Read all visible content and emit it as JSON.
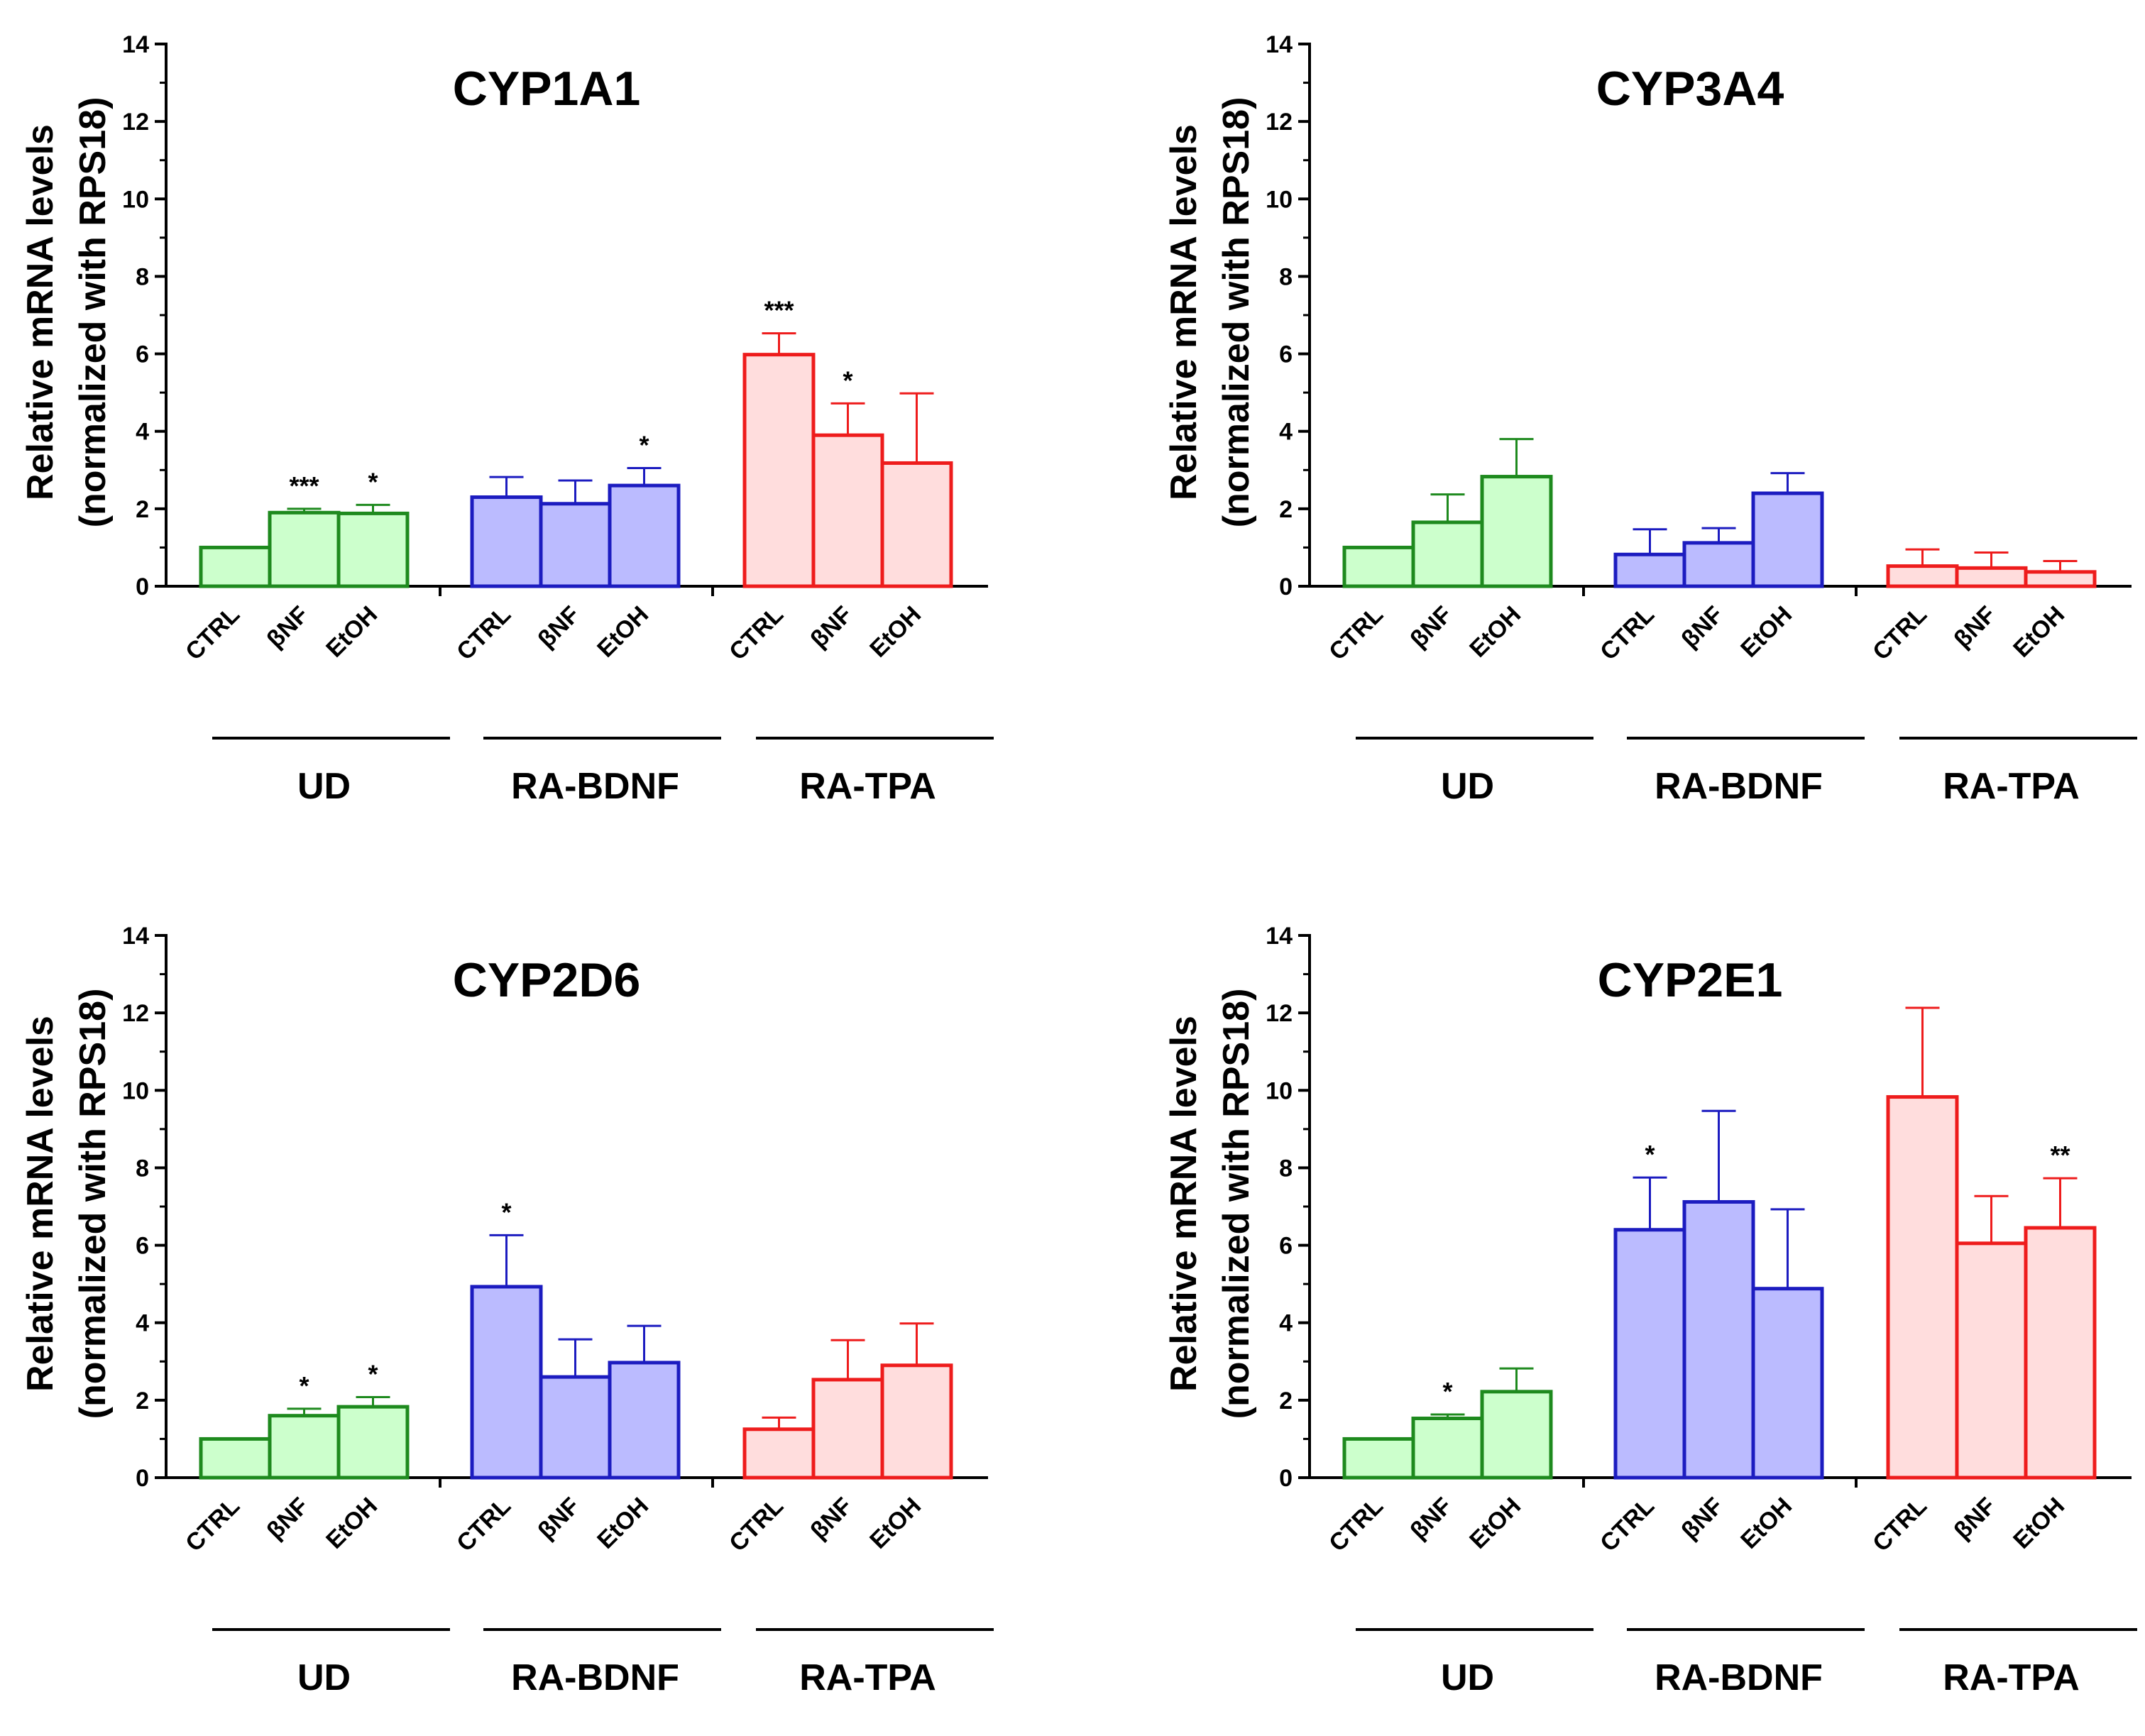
{
  "figure": {
    "ylabel_line1": "Relative mRNA levels",
    "ylabel_line2": "(normalized with RPS18)",
    "yticks": [
      0,
      2,
      4,
      6,
      8,
      10,
      12,
      14
    ],
    "ylim": [
      0,
      14
    ],
    "colors": {
      "UD": "#1e8a1e",
      "RA-BDNF": "#1c1cc0",
      "RA-TPA": "#ee1c1c"
    },
    "fills": {
      "UD": "#ccffcc",
      "RA-BDNF": "#bbbbff",
      "RA-TPA": "#ffdddd"
    }
  },
  "chart_data": [
    {
      "type": "bar",
      "title": "CYP1A1",
      "xlabel": "",
      "ylabel": "Relative mRNA levels (normalized with RPS18)",
      "ylim": [
        0,
        14
      ],
      "categories": [
        "CTRL",
        "βNF",
        "EtOH"
      ],
      "groups": [
        "UD",
        "RA-BDNF",
        "RA-TPA"
      ],
      "series": [
        {
          "name": "UD",
          "values": [
            1.0,
            1.9,
            1.88
          ],
          "errors": [
            0,
            0.1,
            0.22
          ],
          "significance": [
            "",
            "***",
            "*"
          ]
        },
        {
          "name": "RA-BDNF",
          "values": [
            2.3,
            2.13,
            2.6
          ],
          "errors": [
            0.52,
            0.6,
            0.45
          ],
          "significance": [
            "",
            "",
            "*"
          ]
        },
        {
          "name": "RA-TPA",
          "values": [
            5.98,
            3.9,
            3.18
          ],
          "errors": [
            0.55,
            0.82,
            1.8
          ],
          "significance": [
            "***",
            "*",
            ""
          ]
        }
      ]
    },
    {
      "type": "bar",
      "title": "CYP3A4",
      "xlabel": "",
      "ylabel": "Relative mRNA levels (normalized with RPS18)",
      "ylim": [
        0,
        14
      ],
      "categories": [
        "CTRL",
        "βNF",
        "EtOH"
      ],
      "groups": [
        "UD",
        "RA-BDNF",
        "RA-TPA"
      ],
      "series": [
        {
          "name": "UD",
          "values": [
            1.0,
            1.65,
            2.83
          ],
          "errors": [
            0,
            0.72,
            0.97
          ],
          "significance": [
            "",
            "",
            ""
          ]
        },
        {
          "name": "RA-BDNF",
          "values": [
            0.82,
            1.12,
            2.4
          ],
          "errors": [
            0.65,
            0.38,
            0.52
          ],
          "significance": [
            "",
            "",
            ""
          ]
        },
        {
          "name": "RA-TPA",
          "values": [
            0.52,
            0.47,
            0.37
          ],
          "errors": [
            0.43,
            0.4,
            0.28
          ],
          "significance": [
            "",
            "",
            ""
          ]
        }
      ]
    },
    {
      "type": "bar",
      "title": "CYP2D6",
      "xlabel": "",
      "ylabel": "Relative mRNA levels (normalized with RPS18)",
      "ylim": [
        0,
        14
      ],
      "categories": [
        "CTRL",
        "βNF",
        "EtOH"
      ],
      "groups": [
        "UD",
        "RA-BDNF",
        "RA-TPA"
      ],
      "series": [
        {
          "name": "UD",
          "values": [
            1.0,
            1.6,
            1.83
          ],
          "errors": [
            0,
            0.18,
            0.25
          ],
          "significance": [
            "",
            "*",
            "*"
          ]
        },
        {
          "name": "RA-BDNF",
          "values": [
            4.93,
            2.6,
            2.97
          ],
          "errors": [
            1.33,
            0.97,
            0.95
          ],
          "significance": [
            "*",
            "",
            ""
          ]
        },
        {
          "name": "RA-TPA",
          "values": [
            1.25,
            2.53,
            2.9
          ],
          "errors": [
            0.3,
            1.02,
            1.08
          ],
          "significance": [
            "",
            "",
            ""
          ]
        }
      ]
    },
    {
      "type": "bar",
      "title": "CYP2E1",
      "xlabel": "",
      "ylabel": "Relative mRNA levels (normalized with RPS18)",
      "ylim": [
        0,
        14
      ],
      "categories": [
        "CTRL",
        "βNF",
        "EtOH"
      ],
      "groups": [
        "UD",
        "RA-BDNF",
        "RA-TPA"
      ],
      "series": [
        {
          "name": "UD",
          "values": [
            1.0,
            1.53,
            2.22
          ],
          "errors": [
            0,
            0.1,
            0.6
          ],
          "significance": [
            "",
            "*",
            ""
          ]
        },
        {
          "name": "RA-BDNF",
          "values": [
            6.4,
            7.12,
            4.88
          ],
          "errors": [
            1.35,
            2.35,
            2.05
          ],
          "significance": [
            "*",
            "",
            ""
          ]
        },
        {
          "name": "RA-TPA",
          "values": [
            9.83,
            6.05,
            6.45
          ],
          "errors": [
            2.3,
            1.22,
            1.28
          ],
          "significance": [
            "",
            "",
            "**"
          ]
        }
      ]
    }
  ]
}
